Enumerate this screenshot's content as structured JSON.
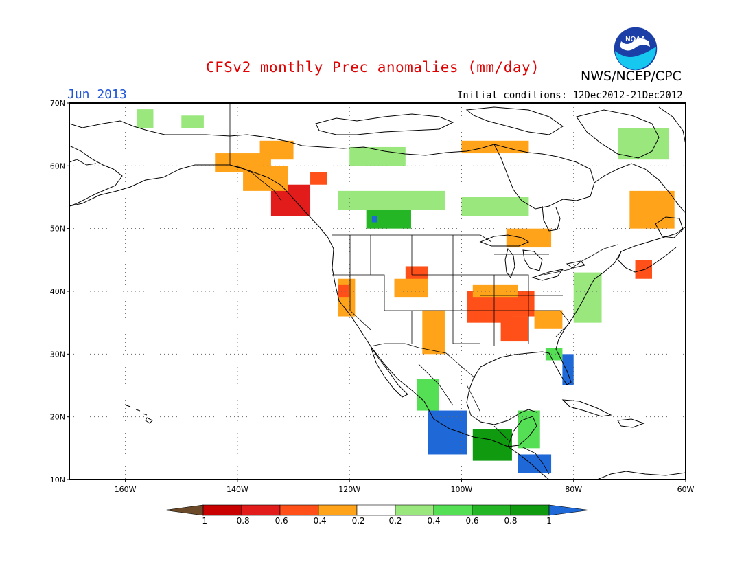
{
  "title": "CFSv2 monthly Prec anomalies (mm/day)",
  "agency": "NWS/NCEP/CPC",
  "logo_text": "NOAA",
  "period": "Jun 2013",
  "initial_conditions": "Initial conditions: 12Dec2012-21Dec2012",
  "map": {
    "lon_range": [
      -170,
      -60
    ],
    "lat_range": [
      10,
      70
    ],
    "lat_labels": [
      "10N",
      "20N",
      "30N",
      "40N",
      "50N",
      "60N",
      "70N"
    ],
    "lon_labels": [
      "160W",
      "140W",
      "120W",
      "100W",
      "80W",
      "60W"
    ],
    "lat_ticks": [
      10,
      20,
      30,
      40,
      50,
      60,
      70
    ],
    "lon_ticks": [
      -160,
      -140,
      -120,
      -100,
      -80,
      -60
    ]
  },
  "colorbar": {
    "labels": [
      "-1",
      "-0.8",
      "-0.6",
      "-0.4",
      "-0.2",
      "0.2",
      "0.4",
      "0.6",
      "0.8",
      "1"
    ],
    "colors": [
      "#6b4a2a",
      "#c80000",
      "#e21b1b",
      "#ff5019",
      "#ffa31a",
      "#ffffff",
      "#9ae87d",
      "#55df55",
      "#24b624",
      "#0f9a0f",
      "#1f68d8"
    ]
  },
  "chart_data": {
    "type": "heatmap",
    "variable": "Prec anomalies",
    "units": "mm/day",
    "levels": [
      -1,
      -0.8,
      -0.6,
      -0.4,
      -0.2,
      0.2,
      0.4,
      0.6,
      0.8,
      1
    ],
    "regions": [
      {
        "lat": [
          52,
          57
        ],
        "lon": [
          -134,
          -127
        ],
        "value": -0.7
      },
      {
        "lat": [
          56,
          60
        ],
        "lon": [
          -139,
          -131
        ],
        "value": -0.4
      },
      {
        "lat": [
          59,
          62
        ],
        "lon": [
          -144,
          -134
        ],
        "value": -0.3
      },
      {
        "lat": [
          61,
          64
        ],
        "lon": [
          -136,
          -130
        ],
        "value": -0.3
      },
      {
        "lat": [
          57,
          59
        ],
        "lon": [
          -127,
          -124
        ],
        "value": -0.5
      },
      {
        "lat": [
          35,
          40
        ],
        "lon": [
          -99,
          -91
        ],
        "value": -0.6
      },
      {
        "lat": [
          36,
          40
        ],
        "lon": [
          -92,
          -87
        ],
        "value": -0.6
      },
      {
        "lat": [
          32,
          36
        ],
        "lon": [
          -93,
          -88
        ],
        "value": -0.6
      },
      {
        "lat": [
          41,
          44
        ],
        "lon": [
          -110,
          -106
        ],
        "value": -0.5
      },
      {
        "lat": [
          39,
          42
        ],
        "lon": [
          -112,
          -106
        ],
        "value": -0.3
      },
      {
        "lat": [
          42,
          45
        ],
        "lon": [
          -69,
          -66
        ],
        "value": -0.5
      },
      {
        "lat": [
          50,
          56
        ],
        "lon": [
          -70,
          -62
        ],
        "value": -0.3
      },
      {
        "lat": [
          62,
          64
        ],
        "lon": [
          -100,
          -88
        ],
        "value": -0.3
      },
      {
        "lat": [
          36,
          42
        ],
        "lon": [
          -122,
          -119
        ],
        "value": -0.3
      },
      {
        "lat": [
          30,
          37
        ],
        "lon": [
          -107,
          -103
        ],
        "value": -0.3
      },
      {
        "lat": [
          39,
          41
        ],
        "lon": [
          -122,
          -120
        ],
        "value": -0.5
      },
      {
        "lat": [
          39,
          41
        ],
        "lon": [
          -98,
          -90
        ],
        "value": -0.3
      },
      {
        "lat": [
          34,
          37
        ],
        "lon": [
          -87,
          -82
        ],
        "value": -0.3
      },
      {
        "lat": [
          47,
          50
        ],
        "lon": [
          -92,
          -84
        ],
        "value": -0.3
      },
      {
        "lat": [
          50,
          55
        ],
        "lon": [
          -117,
          -109
        ],
        "value": 0.6
      },
      {
        "lat": [
          51,
          52
        ],
        "lon": [
          -116,
          -115
        ],
        "value": 1.0
      },
      {
        "lat": [
          53,
          56
        ],
        "lon": [
          -122,
          -103
        ],
        "value": 0.3
      },
      {
        "lat": [
          60,
          63
        ],
        "lon": [
          -120,
          -110
        ],
        "value": 0.3
      },
      {
        "lat": [
          52,
          55
        ],
        "lon": [
          -100,
          -88
        ],
        "value": 0.3
      },
      {
        "lat": [
          66,
          69
        ],
        "lon": [
          -158,
          -155
        ],
        "value": 0.3
      },
      {
        "lat": [
          66,
          68
        ],
        "lon": [
          -150,
          -146
        ],
        "value": 0.3
      },
      {
        "lat": [
          61,
          66
        ],
        "lon": [
          -72,
          -63
        ],
        "value": 0.3
      },
      {
        "lat": [
          35,
          43
        ],
        "lon": [
          -80,
          -75
        ],
        "value": 0.3
      },
      {
        "lat": [
          29,
          31
        ],
        "lon": [
          -85,
          -82
        ],
        "value": 0.5
      },
      {
        "lat": [
          25,
          30
        ],
        "lon": [
          -82,
          -80
        ],
        "value": 1.0
      },
      {
        "lat": [
          14,
          21
        ],
        "lon": [
          -106,
          -99
        ],
        "value": 1.0
      },
      {
        "lat": [
          13,
          18
        ],
        "lon": [
          -98,
          -91
        ],
        "value": 0.8
      },
      {
        "lat": [
          11,
          14
        ],
        "lon": [
          -90,
          -84
        ],
        "value": 1.0
      },
      {
        "lat": [
          15,
          21
        ],
        "lon": [
          -90,
          -86
        ],
        "value": 0.4
      },
      {
        "lat": [
          21,
          26
        ],
        "lon": [
          -108,
          -104
        ],
        "value": 0.5
      }
    ]
  }
}
